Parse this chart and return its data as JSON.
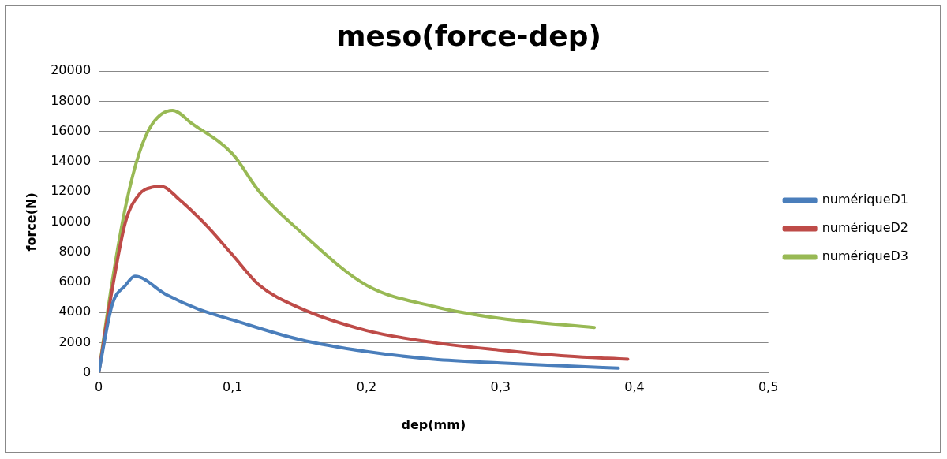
{
  "chart_data": {
    "type": "line",
    "title": "meso(force-dep)",
    "xlabel": "dep(mm)",
    "ylabel": "force(N)",
    "xlim": [
      0,
      0.5
    ],
    "xticks": [
      0,
      {
        "value": 0.1,
        "label": "0,1"
      },
      {
        "value": 0.2,
        "label": "0,2"
      },
      {
        "value": 0.3,
        "label": "0,3"
      },
      {
        "value": 0.4,
        "label": "0,4"
      },
      {
        "value": 0.5,
        "label": "0,5"
      }
    ],
    "ylim": [
      0,
      20000
    ],
    "yticks": [
      0,
      2000,
      4000,
      6000,
      8000,
      10000,
      12000,
      14000,
      16000,
      18000,
      20000
    ],
    "grid": "y",
    "legend": "right",
    "marker": "none",
    "line_style": "solid",
    "series": [
      {
        "name": "numériqueD1",
        "color": "#4a7ebb",
        "x": [
          0,
          0.01,
          0.02,
          0.027,
          0.05,
          0.075,
          0.1,
          0.15,
          0.2,
          0.25,
          0.3,
          0.35,
          0.388
        ],
        "values": [
          0,
          4500,
          5800,
          6400,
          5200,
          4200,
          3500,
          2200,
          1400,
          900,
          650,
          450,
          300
        ]
      },
      {
        "name": "numériqueD2",
        "color": "#be4b48",
        "x": [
          0,
          0.01,
          0.02,
          0.03,
          0.04,
          0.047,
          0.06,
          0.08,
          0.1,
          0.12,
          0.15,
          0.2,
          0.25,
          0.3,
          0.35,
          0.395
        ],
        "values": [
          0,
          5500,
          10000,
          11800,
          12300,
          12350,
          11500,
          9800,
          7800,
          5800,
          4300,
          2800,
          2000,
          1500,
          1100,
          900
        ]
      },
      {
        "name": "numériqueD3",
        "color": "#98b954",
        "x": [
          0,
          0.01,
          0.02,
          0.03,
          0.04,
          0.055,
          0.07,
          0.1,
          0.12,
          0.15,
          0.2,
          0.25,
          0.3,
          0.37
        ],
        "values": [
          0,
          6000,
          11000,
          14500,
          16500,
          17400,
          16500,
          14500,
          12000,
          9400,
          5800,
          4400,
          3600,
          3000
        ]
      }
    ]
  }
}
